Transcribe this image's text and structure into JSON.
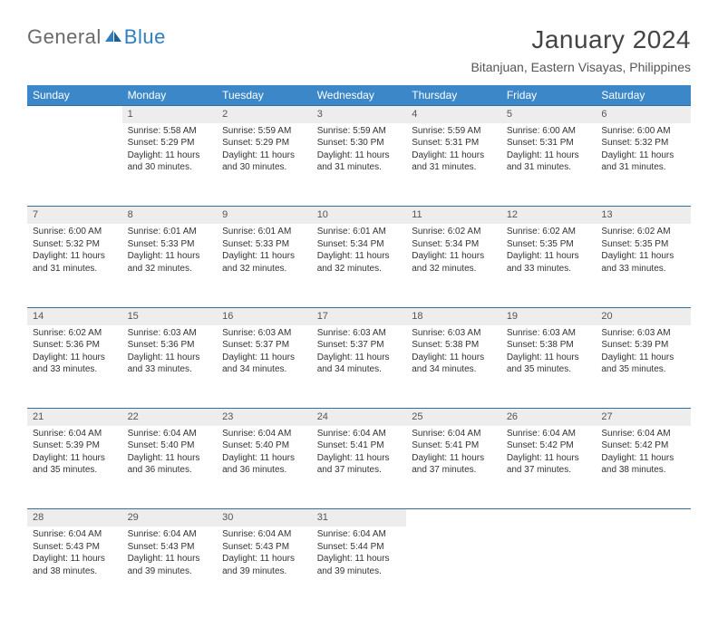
{
  "brand": {
    "general": "General",
    "blue": "Blue"
  },
  "title": "January 2024",
  "location": "Bitanjuan, Eastern Visayas, Philippines",
  "colors": {
    "header_bg": "#3b87c8",
    "daynum_bg": "#ededed",
    "row_divider": "#2f6fa8",
    "brand_blue": "#2f7fbf",
    "text": "#333333"
  },
  "day_headers": [
    "Sunday",
    "Monday",
    "Tuesday",
    "Wednesday",
    "Thursday",
    "Friday",
    "Saturday"
  ],
  "weeks": [
    {
      "nums": [
        "",
        "1",
        "2",
        "3",
        "4",
        "5",
        "6"
      ],
      "cells": [
        {
          "empty": true
        },
        {
          "sunrise": "Sunrise: 5:58 AM",
          "sunset": "Sunset: 5:29 PM",
          "daylight": "Daylight: 11 hours and 30 minutes."
        },
        {
          "sunrise": "Sunrise: 5:59 AM",
          "sunset": "Sunset: 5:29 PM",
          "daylight": "Daylight: 11 hours and 30 minutes."
        },
        {
          "sunrise": "Sunrise: 5:59 AM",
          "sunset": "Sunset: 5:30 PM",
          "daylight": "Daylight: 11 hours and 31 minutes."
        },
        {
          "sunrise": "Sunrise: 5:59 AM",
          "sunset": "Sunset: 5:31 PM",
          "daylight": "Daylight: 11 hours and 31 minutes."
        },
        {
          "sunrise": "Sunrise: 6:00 AM",
          "sunset": "Sunset: 5:31 PM",
          "daylight": "Daylight: 11 hours and 31 minutes."
        },
        {
          "sunrise": "Sunrise: 6:00 AM",
          "sunset": "Sunset: 5:32 PM",
          "daylight": "Daylight: 11 hours and 31 minutes."
        }
      ]
    },
    {
      "nums": [
        "7",
        "8",
        "9",
        "10",
        "11",
        "12",
        "13"
      ],
      "cells": [
        {
          "sunrise": "Sunrise: 6:00 AM",
          "sunset": "Sunset: 5:32 PM",
          "daylight": "Daylight: 11 hours and 31 minutes."
        },
        {
          "sunrise": "Sunrise: 6:01 AM",
          "sunset": "Sunset: 5:33 PM",
          "daylight": "Daylight: 11 hours and 32 minutes."
        },
        {
          "sunrise": "Sunrise: 6:01 AM",
          "sunset": "Sunset: 5:33 PM",
          "daylight": "Daylight: 11 hours and 32 minutes."
        },
        {
          "sunrise": "Sunrise: 6:01 AM",
          "sunset": "Sunset: 5:34 PM",
          "daylight": "Daylight: 11 hours and 32 minutes."
        },
        {
          "sunrise": "Sunrise: 6:02 AM",
          "sunset": "Sunset: 5:34 PM",
          "daylight": "Daylight: 11 hours and 32 minutes."
        },
        {
          "sunrise": "Sunrise: 6:02 AM",
          "sunset": "Sunset: 5:35 PM",
          "daylight": "Daylight: 11 hours and 33 minutes."
        },
        {
          "sunrise": "Sunrise: 6:02 AM",
          "sunset": "Sunset: 5:35 PM",
          "daylight": "Daylight: 11 hours and 33 minutes."
        }
      ]
    },
    {
      "nums": [
        "14",
        "15",
        "16",
        "17",
        "18",
        "19",
        "20"
      ],
      "cells": [
        {
          "sunrise": "Sunrise: 6:02 AM",
          "sunset": "Sunset: 5:36 PM",
          "daylight": "Daylight: 11 hours and 33 minutes."
        },
        {
          "sunrise": "Sunrise: 6:03 AM",
          "sunset": "Sunset: 5:36 PM",
          "daylight": "Daylight: 11 hours and 33 minutes."
        },
        {
          "sunrise": "Sunrise: 6:03 AM",
          "sunset": "Sunset: 5:37 PM",
          "daylight": "Daylight: 11 hours and 34 minutes."
        },
        {
          "sunrise": "Sunrise: 6:03 AM",
          "sunset": "Sunset: 5:37 PM",
          "daylight": "Daylight: 11 hours and 34 minutes."
        },
        {
          "sunrise": "Sunrise: 6:03 AM",
          "sunset": "Sunset: 5:38 PM",
          "daylight": "Daylight: 11 hours and 34 minutes."
        },
        {
          "sunrise": "Sunrise: 6:03 AM",
          "sunset": "Sunset: 5:38 PM",
          "daylight": "Daylight: 11 hours and 35 minutes."
        },
        {
          "sunrise": "Sunrise: 6:03 AM",
          "sunset": "Sunset: 5:39 PM",
          "daylight": "Daylight: 11 hours and 35 minutes."
        }
      ]
    },
    {
      "nums": [
        "21",
        "22",
        "23",
        "24",
        "25",
        "26",
        "27"
      ],
      "cells": [
        {
          "sunrise": "Sunrise: 6:04 AM",
          "sunset": "Sunset: 5:39 PM",
          "daylight": "Daylight: 11 hours and 35 minutes."
        },
        {
          "sunrise": "Sunrise: 6:04 AM",
          "sunset": "Sunset: 5:40 PM",
          "daylight": "Daylight: 11 hours and 36 minutes."
        },
        {
          "sunrise": "Sunrise: 6:04 AM",
          "sunset": "Sunset: 5:40 PM",
          "daylight": "Daylight: 11 hours and 36 minutes."
        },
        {
          "sunrise": "Sunrise: 6:04 AM",
          "sunset": "Sunset: 5:41 PM",
          "daylight": "Daylight: 11 hours and 37 minutes."
        },
        {
          "sunrise": "Sunrise: 6:04 AM",
          "sunset": "Sunset: 5:41 PM",
          "daylight": "Daylight: 11 hours and 37 minutes."
        },
        {
          "sunrise": "Sunrise: 6:04 AM",
          "sunset": "Sunset: 5:42 PM",
          "daylight": "Daylight: 11 hours and 37 minutes."
        },
        {
          "sunrise": "Sunrise: 6:04 AM",
          "sunset": "Sunset: 5:42 PM",
          "daylight": "Daylight: 11 hours and 38 minutes."
        }
      ]
    },
    {
      "nums": [
        "28",
        "29",
        "30",
        "31",
        "",
        "",
        ""
      ],
      "cells": [
        {
          "sunrise": "Sunrise: 6:04 AM",
          "sunset": "Sunset: 5:43 PM",
          "daylight": "Daylight: 11 hours and 38 minutes."
        },
        {
          "sunrise": "Sunrise: 6:04 AM",
          "sunset": "Sunset: 5:43 PM",
          "daylight": "Daylight: 11 hours and 39 minutes."
        },
        {
          "sunrise": "Sunrise: 6:04 AM",
          "sunset": "Sunset: 5:43 PM",
          "daylight": "Daylight: 11 hours and 39 minutes."
        },
        {
          "sunrise": "Sunrise: 6:04 AM",
          "sunset": "Sunset: 5:44 PM",
          "daylight": "Daylight: 11 hours and 39 minutes."
        },
        {
          "empty": true
        },
        {
          "empty": true
        },
        {
          "empty": true
        }
      ]
    }
  ]
}
